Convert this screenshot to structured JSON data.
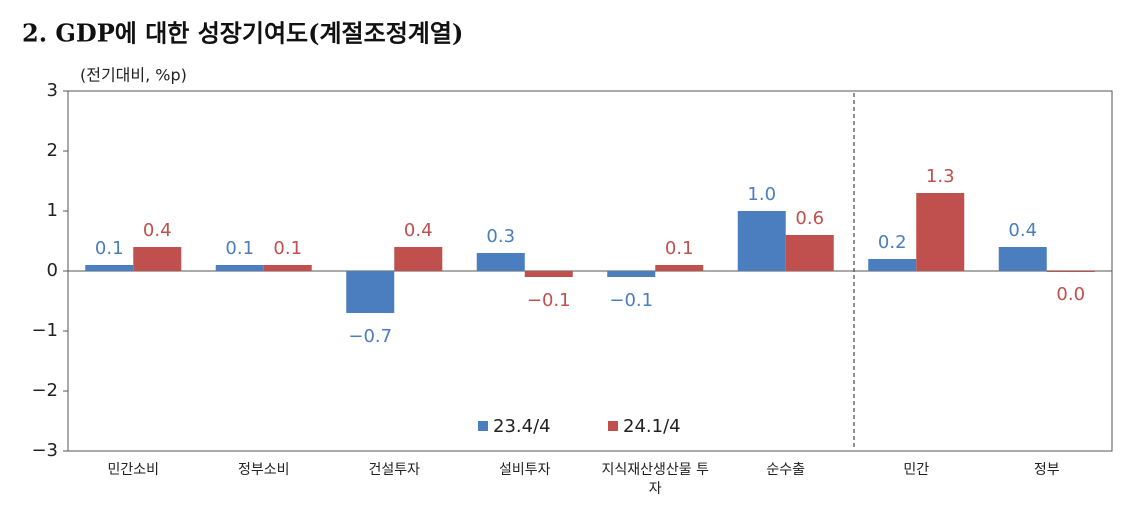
{
  "chart_data": {
    "type": "bar",
    "title": "2. GDP에 대한 성장기여도(계절조정계열)",
    "y_label": "(전기대비, %p)",
    "categories": [
      "민간소비",
      "정부소비",
      "건설투자",
      "설비투자",
      "지식재산생산물 투자",
      "순수출",
      "민간",
      "정부"
    ],
    "series": [
      {
        "name": "23.4/4",
        "color": "#4a7ebf",
        "values": [
          0.1,
          0.1,
          -0.7,
          0.3,
          -0.1,
          1.0,
          0.2,
          0.4
        ],
        "value_labels": [
          "0.1",
          "0.1",
          "−0.7",
          "0.3",
          "−0.1",
          "1.0",
          "0.2",
          "0.4"
        ]
      },
      {
        "name": "24.1/4",
        "color": "#c0504d",
        "values": [
          0.4,
          0.1,
          0.4,
          -0.1,
          0.1,
          0.6,
          1.3,
          0.0
        ],
        "value_labels": [
          "0.4",
          "0.1",
          "0.4",
          "−0.1",
          "0.1",
          "0.6",
          "1.3",
          "0.0"
        ]
      }
    ],
    "ylim": [
      -3,
      3
    ],
    "yticks": [
      {
        "value": -3,
        "label": "−3"
      },
      {
        "value": -2,
        "label": "−2"
      },
      {
        "value": -1,
        "label": "−1"
      },
      0,
      1,
      2,
      3
    ],
    "grid": false,
    "legend": "bottom"
  }
}
